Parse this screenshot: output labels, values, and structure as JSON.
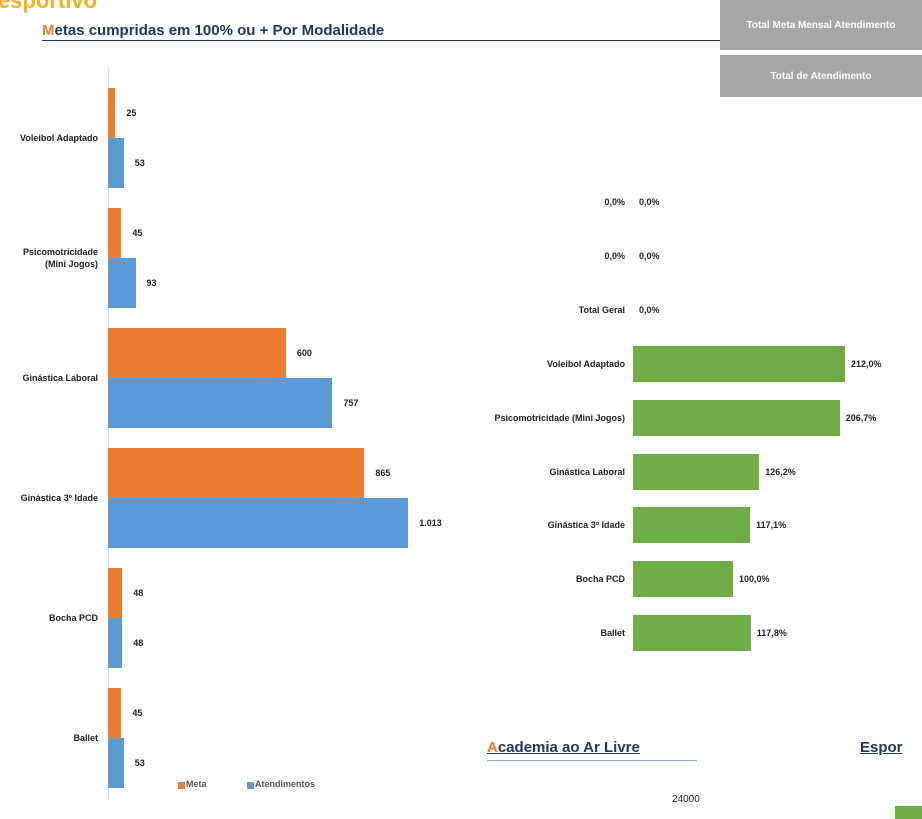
{
  "brand": "esportivo",
  "header": {
    "title": "Metas cumpridas em 100% ou + Por Modalidade"
  },
  "side_boxes": [
    "Total Meta Mensal Atendimento",
    "Total de Atendimento"
  ],
  "section_title": "Academia ao Ar Livre",
  "section_title_2": "Espor",
  "footer_number": "24000",
  "chart_data": [
    {
      "type": "hbar",
      "categories": [
        "Voleibol Adaptado",
        "Psicomotricidade (Mini Jogos)",
        "Ginástica Laboral",
        "Ginástica 3º Idade",
        "Bocha PCD",
        "Ballet"
      ],
      "series": [
        {
          "name": "Meta",
          "color": "#ed7d31",
          "values": [
            25,
            45,
            600,
            865,
            48,
            45
          ]
        },
        {
          "name": "Atendimentos",
          "color": "#5b9bd5",
          "values": [
            53,
            93,
            757,
            1013,
            48,
            53
          ],
          "value_labels": [
            "53",
            "93",
            "757",
            "1.013",
            "48",
            "53"
          ]
        }
      ],
      "xlim": [
        0,
        1100
      ],
      "legend": "bottom"
    },
    {
      "type": "hbar",
      "categories": [
        "0,0%",
        "0,0%",
        "Total Geral",
        "Voleibol Adaptado",
        "Psicomotricidade (Mini Jogos)",
        "Ginástica Laboral",
        "Ginástica 3º Idade",
        "Bocha PCD",
        "Ballet"
      ],
      "series": [
        {
          "color": "#70ad47",
          "values": [
            0,
            0,
            0,
            212.0,
            206.7,
            126.2,
            117.1,
            100.0,
            117.8
          ],
          "value_labels": [
            "0,0%",
            "0,0%",
            "0,0%",
            "212,0%",
            "206,7%",
            "126,2%",
            "117,1%",
            "100,0%",
            "117,8%"
          ]
        }
      ],
      "xlim": [
        0,
        250
      ]
    }
  ]
}
